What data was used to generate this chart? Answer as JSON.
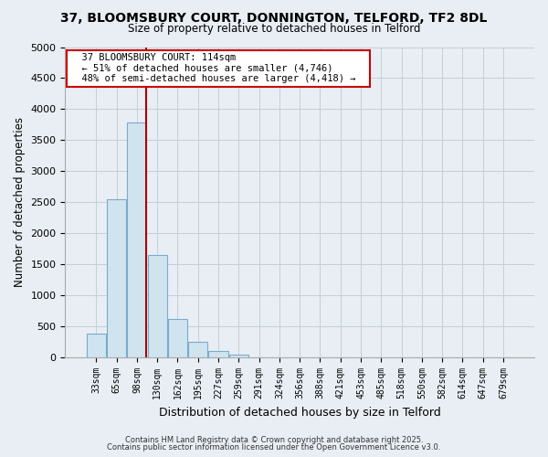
{
  "title_line1": "37, BLOOMSBURY COURT, DONNINGTON, TELFORD, TF2 8DL",
  "title_line2": "Size of property relative to detached houses in Telford",
  "xlabel": "Distribution of detached houses by size in Telford",
  "ylabel": "Number of detached properties",
  "bar_labels": [
    "33sqm",
    "65sqm",
    "98sqm",
    "130sqm",
    "162sqm",
    "195sqm",
    "227sqm",
    "259sqm",
    "291sqm",
    "324sqm",
    "356sqm",
    "388sqm",
    "421sqm",
    "453sqm",
    "485sqm",
    "518sqm",
    "550sqm",
    "582sqm",
    "614sqm",
    "647sqm",
    "679sqm"
  ],
  "bar_values": [
    390,
    2550,
    3780,
    1650,
    620,
    250,
    100,
    50,
    5,
    0,
    0,
    0,
    0,
    0,
    0,
    0,
    0,
    0,
    0,
    0,
    0
  ],
  "bar_color": "#d0e4f0",
  "bar_edgecolor": "#7aaacb",
  "ylim": [
    0,
    5000
  ],
  "yticks": [
    0,
    500,
    1000,
    1500,
    2000,
    2500,
    3000,
    3500,
    4000,
    4500,
    5000
  ],
  "vline_color": "#aa0000",
  "annotation_title": "37 BLOOMSBURY COURT: 114sqm",
  "annotation_line1": "← 51% of detached houses are smaller (4,746)",
  "annotation_line2": "48% of semi-detached houses are larger (4,418) →",
  "annotation_box_facecolor": "#ffffff",
  "annotation_box_edgecolor": "#cc0000",
  "footer_line1": "Contains HM Land Registry data © Crown copyright and database right 2025.",
  "footer_line2": "Contains public sector information licensed under the Open Government Licence v3.0.",
  "background_color": "#e8eef4",
  "plot_background": "#e8eef4",
  "grid_color": "#c5cdd6"
}
